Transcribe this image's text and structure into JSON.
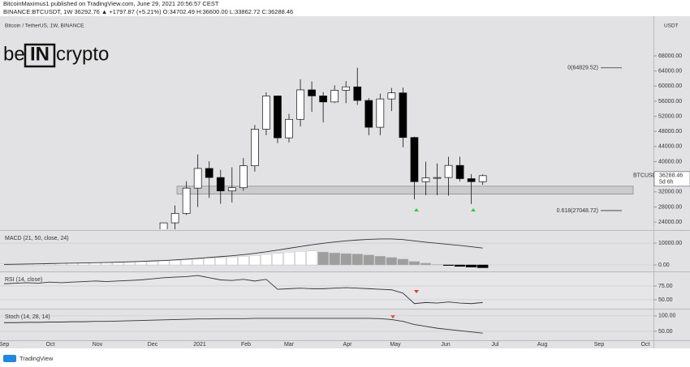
{
  "header": {
    "line1": "BitcoinMaximus1 published on TradingView.com, June 29, 2021 20:56:57 CEST",
    "line2": "BINANCE:BTCUSDT, 1W 36292.76 ▲ +1797.87 (+5.21%) O:34702.49 H:36600.00 L:33862.72 C:36288.46"
  },
  "logo": {
    "left": "be",
    "box": "IN",
    "right": "crypto"
  },
  "footer": {
    "brand": "TradingView"
  },
  "chart_data": [
    {
      "type": "candlestick",
      "title": "Bitcoin / TetherUS, 1W, BINANCE",
      "symbol": "BTCUSDT",
      "currency": "USDT",
      "countdown": "5d 6h",
      "open": [
        19150,
        23800,
        26300,
        33000,
        38200,
        35800,
        32250,
        33100,
        38900,
        48600,
        57400,
        46300,
        51200,
        59000,
        57400,
        55800,
        58900,
        59800,
        56200,
        49100,
        56600,
        58200,
        46400,
        34700,
        35700,
        35800,
        39000,
        35500,
        34702.49
      ],
      "high": [
        23800,
        28400,
        34800,
        41900,
        40100,
        37850,
        38500,
        40950,
        49700,
        58350,
        57500,
        52650,
        61800,
        61200,
        58400,
        60200,
        61300,
        64850,
        56800,
        58000,
        59500,
        59600,
        46600,
        40000,
        39500,
        41300,
        41300,
        36700,
        36600
      ],
      "low": [
        19000,
        21800,
        25900,
        28000,
        30400,
        28850,
        29200,
        32300,
        37350,
        47000,
        44900,
        45100,
        49300,
        53200,
        50400,
        55500,
        55500,
        55000,
        47000,
        47000,
        53400,
        43800,
        30000,
        31100,
        31100,
        31000,
        34800,
        28800,
        33862.72
      ],
      "close": [
        23800,
        26300,
        33000,
        38200,
        35800,
        32250,
        33100,
        38900,
        48600,
        57400,
        46300,
        51200,
        59000,
        57400,
        55800,
        58900,
        59800,
        56200,
        49100,
        56600,
        58200,
        46400,
        34700,
        35700,
        35800,
        39000,
        35500,
        34700,
        36288.46
      ],
      "up_color": "#ffffff",
      "down_color": "#000000",
      "ylim": [
        22100,
        78500
      ],
      "yticks": [
        {
          "value": 24000,
          "label": "24000.00"
        },
        {
          "value": 28000,
          "label": "28000.00"
        },
        {
          "value": 32000,
          "label": "32000.00"
        },
        {
          "value": 36000,
          "label": "36000.00"
        },
        {
          "value": 40000,
          "label": "40000.00"
        },
        {
          "value": 44000,
          "label": "44000.00"
        },
        {
          "value": 48000,
          "label": "48000.00"
        },
        {
          "value": 52000,
          "label": "52000.00"
        },
        {
          "value": 56000,
          "label": "56000.00"
        },
        {
          "value": 60000,
          "label": "60000.00"
        },
        {
          "value": 64000,
          "label": "64000.00"
        },
        {
          "value": 68000,
          "label": "68000.00"
        }
      ],
      "support_zone": [
        31400,
        33500
      ],
      "fib_levels": [
        {
          "value": 64829.52,
          "label": "0(64829.52)"
        },
        {
          "value": 27048.72,
          "label": "0.618(27048.72)"
        }
      ],
      "xtick_labels": [
        "Sep",
        "Oct",
        "Nov",
        "Dec",
        "2021",
        "Feb",
        "Mar",
        "Apr",
        "May",
        "Jun",
        "Jul",
        "Aug",
        "Sep",
        "Oct"
      ]
    },
    {
      "type": "macd",
      "title": "MACD (21, 50, close, 24)",
      "histogram": [
        500,
        550,
        600,
        650,
        700,
        750,
        800,
        900,
        1000,
        1100,
        1200,
        1300,
        1500,
        1700,
        1900,
        2100,
        2400,
        2700,
        3000,
        3300,
        3600,
        3900,
        4300,
        4800,
        5300,
        5800,
        6200,
        6400,
        5900,
        5500,
        5200,
        5000,
        4600,
        4000,
        3400,
        2700,
        1600,
        800,
        200,
        -300,
        -700,
        -1000,
        -1300
      ],
      "macd": [
        200,
        300,
        400,
        500,
        600,
        700,
        800,
        900,
        1000,
        1100,
        1250,
        1400,
        1600,
        1800,
        2000,
        2300,
        2600,
        3000,
        3400,
        3800,
        4200,
        4700,
        5300,
        6000,
        6800,
        7600,
        8400,
        9200,
        9900,
        10500,
        11000,
        11400,
        11700,
        11900,
        11900,
        11600,
        11000,
        10400,
        9900,
        9400,
        8900,
        8300,
        7700
      ],
      "colors": {
        "rising": "#ffffff",
        "falling": "#9e9e9e",
        "negative": "#000000",
        "line": "#333333"
      },
      "ylim": [
        -2600,
        15200
      ],
      "yticks": [
        {
          "value": 10000,
          "label": "10000.00"
        },
        {
          "value": 0,
          "label": "0.00"
        }
      ]
    },
    {
      "type": "rsi",
      "title": "RSI (14, close)",
      "values": [
        79,
        80,
        81,
        80,
        82,
        81,
        82,
        83,
        84,
        83,
        84,
        85,
        86,
        88,
        90,
        91,
        92,
        94,
        90,
        86,
        85,
        87,
        84,
        87,
        69,
        70,
        71,
        70,
        70,
        71,
        72,
        71,
        70,
        69,
        68,
        62,
        43,
        45,
        44,
        46,
        44,
        43,
        45
      ],
      "color": "#333333",
      "ylim": [
        33.8,
        98.5
      ],
      "yticks": [
        {
          "value": 75,
          "label": "75.00"
        },
        {
          "value": 50,
          "label": "50.00"
        }
      ]
    },
    {
      "type": "stoch",
      "title": "Stoch (14, 28, 14)",
      "values": [
        78,
        78,
        79,
        79,
        80,
        80,
        81,
        81,
        82,
        82,
        83,
        84,
        85,
        86,
        87,
        88,
        89,
        90,
        90,
        91,
        91,
        91,
        92,
        92,
        92,
        92,
        92,
        92,
        92,
        92,
        92,
        92,
        92,
        91,
        88,
        82,
        72,
        66,
        60,
        56,
        52,
        48,
        44
      ],
      "color": "#333333",
      "ylim": [
        21,
        118
      ],
      "yticks": [
        {
          "value": 100,
          "label": "100.00"
        },
        {
          "value": 50,
          "label": "50.00"
        }
      ]
    }
  ]
}
